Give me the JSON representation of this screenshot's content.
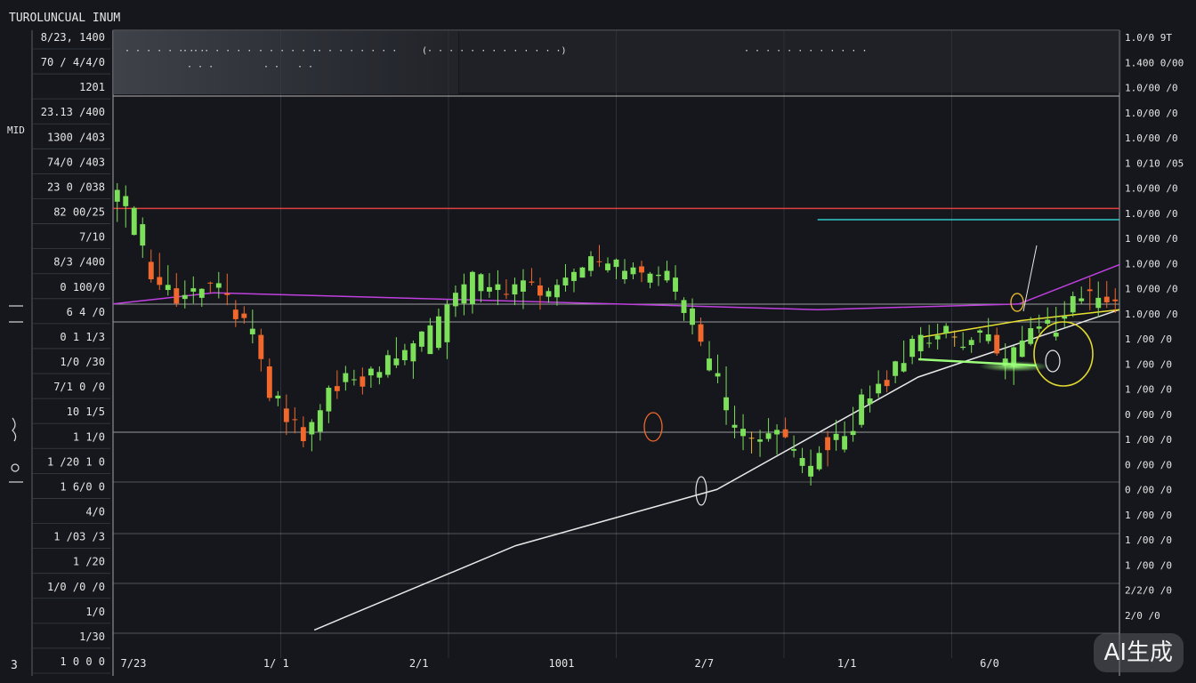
{
  "header": {
    "title": "TUROLUNCUAL INUM"
  },
  "watermark": {
    "text": "AI生成"
  },
  "left_side_labels": [
    "MID",
    "3"
  ],
  "top_tooltip": {
    "row1": [
      "· · · · · · · ·",
      "· · · · · · ·",
      "· · · · · ·",
      "· · · · · ·  · ·"
    ],
    "row2": [
      "· · ·",
      "· ·",
      "· ·"
    ],
    "mid": "(· · · · · · · · · · · · ·)",
    "right": "· · · · · · · · · · · ·"
  },
  "colors": {
    "background": "#15171c",
    "bullish": "#7ce05a",
    "bearish": "#f0682c",
    "neutral": "#e8b040",
    "magenta": "#c040e0",
    "red_line": "#e04040",
    "cyan": "#30c8c8",
    "white_line": "#e8e8e8",
    "yellow": "#e8e030"
  },
  "chart_data": {
    "type": "candlestick",
    "title": "TUROLUNCUAL INUM",
    "x_tick_labels": [
      "7/23",
      "1/ 1",
      "2/1",
      "1001",
      "2/7",
      "1/1",
      "6/0"
    ],
    "left_tick_labels": [
      "8/23, 1400",
      "70 / 4/4/0",
      "1201",
      "23.13 /400",
      "1300 /403",
      "74/0 /403",
      "23 0 /038",
      "82 00/25",
      "7/10",
      "8/3 /400",
      "0 100/0",
      "6 4 /0",
      "0 1 1/3",
      "1/0 /30",
      "7/1 0 /0",
      "10 1/5",
      "1 1/0",
      "1 /20 1 0",
      "1 6/0 0",
      "4/0",
      "1 /03 /3",
      "1 /20",
      "1/0 /0 /0",
      "1/0",
      "1/30",
      "1 0 0 0"
    ],
    "right_tick_labels": [
      "1.0/0 9T",
      "1.400 0/00",
      "1.0/00 /0",
      "1.0/00 /0",
      "1.0/00 /0",
      "1 0/10 /05",
      "1.0/00 /0",
      "1.0/00 /0",
      "1 0/00 /0",
      "1.0/00 /0",
      "1 0/00 /0",
      "1.0/00 /0",
      "1 /00 /0",
      "1 /00 /0",
      "1 /00 /0",
      "0 /00 /0",
      "1 /00 /0",
      "0 /00 /0",
      "0 /00 /0",
      "1 /00 /0",
      "1 /00 /0",
      "1 /00 /0",
      "2/2/0 /0",
      "2/0 /0"
    ],
    "y_range": [
      0,
      100
    ],
    "grid": true,
    "legend": "none",
    "candles": [
      [
        81.2,
        84.5,
        77.6,
        83.3
      ],
      [
        80.4,
        84.1,
        76.6,
        82.2
      ],
      [
        75.3,
        80.4,
        75.2,
        80.1
      ],
      [
        73.4,
        78.4,
        71.2,
        77.2
      ],
      [
        70.5,
        72.7,
        66.8,
        67.4
      ],
      [
        67.8,
        72.1,
        65.5,
        66.4
      ],
      [
        65.5,
        69.9,
        64.5,
        66.4
      ],
      [
        65.8,
        68.5,
        62.5,
        63.1
      ],
      [
        63.9,
        67.2,
        62.2,
        64.6
      ],
      [
        65.2,
        67.9,
        63.1,
        65.8
      ],
      [
        64.1,
        65.8,
        62.5,
        65.7
      ],
      [
        66.8,
        67.0,
        65.0,
        66.7
      ],
      [
        65.9,
        68.7,
        64.0,
        66.7
      ],
      [
        64.9,
        68.4,
        62.8,
        64.6
      ],
      [
        62.0,
        63.7,
        58.9,
        60.3
      ],
      [
        61.3,
        62.6,
        59.5,
        60.5
      ],
      [
        57.6,
        62.0,
        56.0,
        58.6
      ],
      [
        57.5,
        58.6,
        51.0,
        53.2
      ],
      [
        51.9,
        53.3,
        45.7,
        46.3
      ],
      [
        46.2,
        47.5,
        44.8,
        46.7
      ],
      [
        44.4,
        46.9,
        39.7,
        42.0
      ],
      [
        42.5,
        44.6,
        40.0,
        42.4
      ],
      [
        41.1,
        43.0,
        37.5,
        38.6
      ],
      [
        39.8,
        42.5,
        36.8,
        42.0
      ],
      [
        40.3,
        45.2,
        38.7,
        44.1
      ],
      [
        43.9,
        48.5,
        41.8,
        48.1
      ],
      [
        48.4,
        51.2,
        46.1,
        47.5
      ],
      [
        49.1,
        52.0,
        47.6,
        50.7
      ],
      [
        49.5,
        51.3,
        48.5,
        49.6
      ],
      [
        50.1,
        51.7,
        46.9,
        48.3
      ],
      [
        50.3,
        51.9,
        48.1,
        51.5
      ],
      [
        49.9,
        51.9,
        48.7,
        50.9
      ],
      [
        50.4,
        54.8,
        49.9,
        53.9
      ],
      [
        52.1,
        57.1,
        51.6,
        53.3
      ],
      [
        53.0,
        55.9,
        52.1,
        54.8
      ],
      [
        52.8,
        56.5,
        49.7,
        56.0
      ],
      [
        55.4,
        58.2,
        54.5,
        58.1
      ],
      [
        54.1,
        60.5,
        54.1,
        59.2
      ],
      [
        55.2,
        62.2,
        54.8,
        60.8
      ],
      [
        56.2,
        63.7,
        53.2,
        62.9
      ],
      [
        62.6,
        66.3,
        60.7,
        65.0
      ],
      [
        63.1,
        68.4,
        61.0,
        66.5
      ],
      [
        63.0,
        68.9,
        61.3,
        68.7
      ],
      [
        65.3,
        68.5,
        63.3,
        68.3
      ],
      [
        65.2,
        68.5,
        64.1,
        66.0
      ],
      [
        65.5,
        69.0,
        62.8,
        66.5
      ],
      [
        64.8,
        67.4,
        63.9,
        64.7
      ],
      [
        64.7,
        67.7,
        62.8,
        66.5
      ],
      [
        65.2,
        69.2,
        62.1,
        67.2
      ],
      [
        67.0,
        69.4,
        66.3,
        66.8
      ],
      [
        66.3,
        67.7,
        62.0,
        64.5
      ],
      [
        64.3,
        65.9,
        63.2,
        65.3
      ],
      [
        64.2,
        67.4,
        62.7,
        66.4
      ],
      [
        66.3,
        70.1,
        65.2,
        67.7
      ],
      [
        67.1,
        69.3,
        65.1,
        68.7
      ],
      [
        67.7,
        69.6,
        67.7,
        69.5
      ],
      [
        68.9,
        72.4,
        67.9,
        71.5
      ],
      [
        70.6,
        73.5,
        69.6,
        70.5
      ],
      [
        69.0,
        71.3,
        68.6,
        70.2
      ],
      [
        69.6,
        71.1,
        67.4,
        70.9
      ],
      [
        67.4,
        71.0,
        66.6,
        68.9
      ],
      [
        68.3,
        70.4,
        67.4,
        69.5
      ],
      [
        69.7,
        70.7,
        66.9,
        68.6
      ],
      [
        66.8,
        68.7,
        65.8,
        68.4
      ],
      [
        68.0,
        69.7,
        66.2,
        68.2
      ],
      [
        67.2,
        70.7,
        66.8,
        68.9
      ],
      [
        65.2,
        69.9,
        63.7,
        67.7
      ],
      [
        61.4,
        64.2,
        60.0,
        63.7
      ],
      [
        59.3,
        64.0,
        57.6,
        62.2
      ],
      [
        59.4,
        60.6,
        55.5,
        56.3
      ],
      [
        51.2,
        56.4,
        51.0,
        53.3
      ],
      [
        50.1,
        54.0,
        48.9,
        50.7
      ],
      [
        44.1,
        51.9,
        41.5,
        46.4
      ],
      [
        41.0,
        44.9,
        39.1,
        41.5
      ],
      [
        39.5,
        43.4,
        37.0,
        40.8
      ],
      [
        39.2,
        40.3,
        36.4,
        39.2
      ],
      [
        38.5,
        40.6,
        35.8,
        38.9
      ],
      [
        39.0,
        42.7,
        38.5,
        40.0
      ],
      [
        39.8,
        41.6,
        36.2,
        40.6
      ],
      [
        40.7,
        42.8,
        39.1,
        39.3
      ],
      [
        36.9,
        39.6,
        35.7,
        37.2
      ],
      [
        34.2,
        37.4,
        32.9,
        35.6
      ],
      [
        32.3,
        37.1,
        30.7,
        34.2
      ],
      [
        33.6,
        37.7,
        33.3,
        36.5
      ],
      [
        39.3,
        40.4,
        34.1,
        37.0
      ],
      [
        38.8,
        42.4,
        36.9,
        39.9
      ],
      [
        37.1,
        42.1,
        36.6,
        39.5
      ],
      [
        39.7,
        44.7,
        38.5,
        40.4
      ],
      [
        41.5,
        47.9,
        41.0,
        46.9
      ],
      [
        45.2,
        48.5,
        43.7,
        46.2
      ],
      [
        47.1,
        51.2,
        46.3,
        48.8
      ],
      [
        49.5,
        51.2,
        47.3,
        48.4
      ],
      [
        50.2,
        52.9,
        48.9,
        52.8
      ],
      [
        51.0,
        56.5,
        50.8,
        52.5
      ],
      [
        53.6,
        57.4,
        52.3,
        56.8
      ],
      [
        54.6,
        58.9,
        53.2,
        57.5
      ],
      [
        56.0,
        59.3,
        55.2,
        56.1
      ],
      [
        56.7,
        59.5,
        54.9,
        57.4
      ],
      [
        57.8,
        59.6,
        56.9,
        59.1
      ],
      [
        57.2,
        58.3,
        55.4,
        57.2
      ],
      [
        55.2,
        58.0,
        54.8,
        55.4
      ],
      [
        55.7,
        57.1,
        54.3,
        56.6
      ],
      [
        57.9,
        58.6,
        56.1,
        58.3
      ],
      [
        56.4,
        60.5,
        55.9,
        57.6
      ],
      [
        57.5,
        58.8,
        53.8,
        54.2
      ],
      [
        52.0,
        56.0,
        49.6,
        53.3
      ],
      [
        52.0,
        55.6,
        48.6,
        55.3
      ],
      [
        53.6,
        59.1,
        53.5,
        56.5
      ],
      [
        55.9,
        60.7,
        55.6,
        58.7
      ],
      [
        58.6,
        61.1,
        57.8,
        59.0
      ],
      [
        59.5,
        62.4,
        58.9,
        60.2
      ],
      [
        57.2,
        62.5,
        56.5,
        57.9
      ],
      [
        60.4,
        63.5,
        58.9,
        60.8
      ],
      [
        61.5,
        65.2,
        60.7,
        64.4
      ],
      [
        63.5,
        66.1,
        63.0,
        64.0
      ],
      [
        65.6,
        67.7,
        61.9,
        65.3
      ],
      [
        62.3,
        67.0,
        60.6,
        64.1
      ],
      [
        64.3,
        67.1,
        62.3,
        63.3
      ],
      [
        63.8,
        65.8,
        61.4,
        63.5
      ]
    ],
    "overlay_lines": [
      {
        "color": "magenta",
        "points": [
          [
            0,
            63
          ],
          [
            10,
            65
          ],
          [
            30,
            64
          ],
          [
            50,
            63
          ],
          [
            70,
            62
          ],
          [
            90,
            63
          ],
          [
            100,
            70
          ]
        ]
      },
      {
        "color": "red_line",
        "points": [
          [
            0,
            80
          ],
          [
            100,
            80
          ]
        ]
      },
      {
        "color": "cyan",
        "points": [
          [
            70,
            78
          ],
          [
            100,
            78
          ]
        ]
      },
      {
        "color": "white_line",
        "points": [
          [
            20,
            5
          ],
          [
            40,
            20
          ],
          [
            60,
            30
          ],
          [
            80,
            50
          ],
          [
            100,
            62
          ]
        ]
      },
      {
        "color": "yellow",
        "points": [
          [
            80,
            57
          ],
          [
            90,
            60
          ],
          [
            100,
            62
          ]
        ]
      }
    ]
  }
}
